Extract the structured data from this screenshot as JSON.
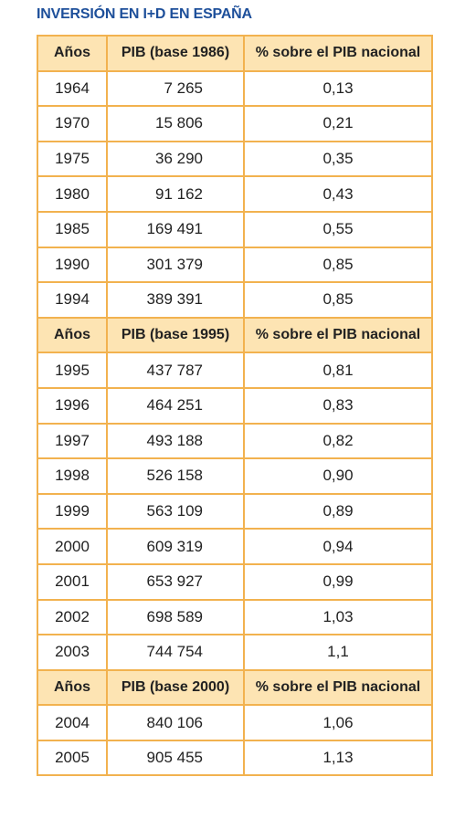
{
  "title": "INVERSIÓN EN I+D EN ESPAÑA",
  "table": {
    "sections": [
      {
        "header": [
          "Años",
          "PIB (base 1986)",
          "% sobre el PIB nacional"
        ],
        "rows": [
          [
            "1964",
            "7 265",
            "0,13"
          ],
          [
            "1970",
            "15 806",
            "0,21"
          ],
          [
            "1975",
            "36 290",
            "0,35"
          ],
          [
            "1980",
            "91 162",
            "0,43"
          ],
          [
            "1985",
            "169 491",
            "0,55"
          ],
          [
            "1990",
            "301 379",
            "0,85"
          ],
          [
            "1994",
            "389 391",
            "0,85"
          ]
        ]
      },
      {
        "header": [
          "Años",
          "PIB (base 1995)",
          "% sobre el PIB nacional"
        ],
        "rows": [
          [
            "1995",
            "437 787",
            "0,81"
          ],
          [
            "1996",
            "464 251",
            "0,83"
          ],
          [
            "1997",
            "493 188",
            "0,82"
          ],
          [
            "1998",
            "526 158",
            "0,90"
          ],
          [
            "1999",
            "563 109",
            "0,89"
          ],
          [
            "2000",
            "609 319",
            "0,94"
          ],
          [
            "2001",
            "653 927",
            "0,99"
          ],
          [
            "2002",
            "698 589",
            "1,03"
          ],
          [
            "2003",
            "744 754",
            "1,1"
          ]
        ]
      },
      {
        "header": [
          "Años",
          "PIB (base 2000)",
          "% sobre el PIB nacional"
        ],
        "rows": [
          [
            "2004",
            "840 106",
            "1,06"
          ],
          [
            "2005",
            "905 455",
            "1,13"
          ]
        ]
      }
    ]
  }
}
